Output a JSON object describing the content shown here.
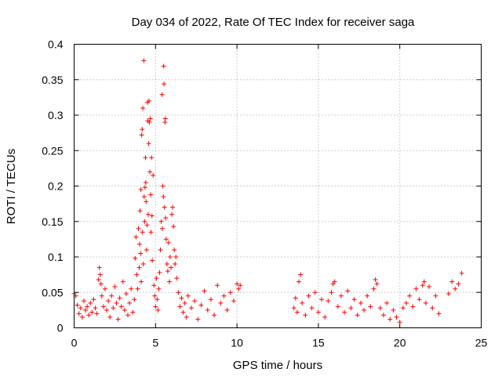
{
  "chart_data": {
    "type": "scatter",
    "title": "Day 034 of 2022, Rate Of TEC Index for receiver saga",
    "xlabel": "GPS time / hours",
    "ylabel": "ROTI / TECUs",
    "xlim": [
      0,
      25
    ],
    "ylim": [
      0,
      0.4
    ],
    "xticks": [
      0,
      5,
      10,
      15,
      20,
      25
    ],
    "yticks": [
      0,
      0.05,
      0.1,
      0.15,
      0.2,
      0.25,
      0.3,
      0.35,
      0.4
    ],
    "xtick_labels": [
      "0",
      "5",
      "10",
      "15",
      "20",
      "25"
    ],
    "ytick_labels": [
      "0",
      "0.05",
      "0.1",
      "0.15",
      "0.2",
      "0.25",
      "0.3",
      "0.35",
      "0.4"
    ],
    "grid": true,
    "marker": "+",
    "color": "#ff0000",
    "series": [
      {
        "name": "ROTI",
        "points": [
          [
            0.0,
            0.048
          ],
          [
            0.1,
            0.045
          ],
          [
            0.2,
            0.032
          ],
          [
            0.3,
            0.02
          ],
          [
            0.4,
            0.028
          ],
          [
            0.5,
            0.015
          ],
          [
            0.6,
            0.038
          ],
          [
            0.7,
            0.025
          ],
          [
            0.8,
            0.03
          ],
          [
            0.9,
            0.018
          ],
          [
            1.0,
            0.035
          ],
          [
            1.1,
            0.022
          ],
          [
            1.2,
            0.04
          ],
          [
            1.3,
            0.028
          ],
          [
            1.4,
            0.02
          ],
          [
            1.5,
            0.068
          ],
          [
            1.55,
            0.085
          ],
          [
            1.6,
            0.075
          ],
          [
            1.65,
            0.062
          ],
          [
            1.7,
            0.045
          ],
          [
            1.8,
            0.03
          ],
          [
            1.9,
            0.055
          ],
          [
            2.0,
            0.025
          ],
          [
            2.1,
            0.038
          ],
          [
            2.2,
            0.015
          ],
          [
            2.3,
            0.045
          ],
          [
            2.4,
            0.028
          ],
          [
            2.5,
            0.058
          ],
          [
            2.6,
            0.035
          ],
          [
            2.7,
            0.012
          ],
          [
            2.8,
            0.042
          ],
          [
            2.9,
            0.03
          ],
          [
            3.0,
            0.065
          ],
          [
            3.1,
            0.025
          ],
          [
            3.2,
            0.048
          ],
          [
            3.3,
            0.018
          ],
          [
            3.4,
            0.035
          ],
          [
            3.5,
            0.055
          ],
          [
            3.6,
            0.022
          ],
          [
            3.7,
            0.04
          ],
          [
            3.75,
            0.098
          ],
          [
            3.8,
            0.128
          ],
          [
            3.85,
            0.075
          ],
          [
            3.9,
            0.055
          ],
          [
            3.95,
            0.14
          ],
          [
            4.0,
            0.085
          ],
          [
            4.02,
            0.118
          ],
          [
            4.05,
            0.165
          ],
          [
            4.08,
            0.105
          ],
          [
            4.1,
            0.195
          ],
          [
            4.12,
            0.065
          ],
          [
            4.15,
            0.272
          ],
          [
            4.18,
            0.28
          ],
          [
            4.2,
            0.135
          ],
          [
            4.22,
            0.31
          ],
          [
            4.25,
            0.09
          ],
          [
            4.28,
            0.377
          ],
          [
            4.3,
            0.185
          ],
          [
            4.33,
            0.15
          ],
          [
            4.35,
            0.198
          ],
          [
            4.38,
            0.24
          ],
          [
            4.4,
            0.205
          ],
          [
            4.42,
            0.178
          ],
          [
            4.45,
            0.11
          ],
          [
            4.48,
            0.145
          ],
          [
            4.5,
            0.318
          ],
          [
            4.52,
            0.292
          ],
          [
            4.55,
            0.16
          ],
          [
            4.58,
            0.26
          ],
          [
            4.6,
            0.32
          ],
          [
            4.62,
            0.29
          ],
          [
            4.65,
            0.22
          ],
          [
            4.68,
            0.295
          ],
          [
            4.7,
            0.188
          ],
          [
            4.72,
            0.135
          ],
          [
            4.75,
            0.24
          ],
          [
            4.78,
            0.158
          ],
          [
            4.8,
            0.095
          ],
          [
            4.85,
            0.215
          ],
          [
            4.9,
            0.06
          ],
          [
            4.95,
            0.045
          ],
          [
            5.0,
            0.03
          ],
          [
            5.05,
            0.07
          ],
          [
            5.1,
            0.04
          ],
          [
            5.15,
            0.025
          ],
          [
            5.2,
            0.055
          ],
          [
            5.25,
            0.078
          ],
          [
            5.3,
            0.11
          ],
          [
            5.35,
            0.15
          ],
          [
            5.4,
            0.329
          ],
          [
            5.42,
            0.14
          ],
          [
            5.45,
            0.2
          ],
          [
            5.48,
            0.185
          ],
          [
            5.5,
            0.369
          ],
          [
            5.52,
            0.344
          ],
          [
            5.55,
            0.17
          ],
          [
            5.58,
            0.29
          ],
          [
            5.6,
            0.295
          ],
          [
            5.62,
            0.155
          ],
          [
            5.65,
            0.125
          ],
          [
            5.7,
            0.09
          ],
          [
            5.75,
            0.08
          ],
          [
            5.8,
            0.12
          ],
          [
            5.85,
            0.065
          ],
          [
            5.9,
            0.1
          ],
          [
            5.95,
            0.085
          ],
          [
            6.0,
            0.16
          ],
          [
            6.05,
            0.17
          ],
          [
            6.1,
            0.143
          ],
          [
            6.15,
            0.11
          ],
          [
            6.2,
            0.09
          ],
          [
            6.25,
            0.1
          ],
          [
            6.3,
            0.07
          ],
          [
            6.4,
            0.05
          ],
          [
            6.5,
            0.03
          ],
          [
            6.6,
            0.042
          ],
          [
            6.7,
            0.022
          ],
          [
            6.8,
            0.035
          ],
          [
            6.9,
            0.015
          ],
          [
            7.0,
            0.045
          ],
          [
            7.2,
            0.028
          ],
          [
            7.4,
            0.038
          ],
          [
            7.6,
            0.012
          ],
          [
            7.8,
            0.032
          ],
          [
            8.0,
            0.052
          ],
          [
            8.2,
            0.025
          ],
          [
            8.4,
            0.04
          ],
          [
            8.6,
            0.018
          ],
          [
            8.8,
            0.06
          ],
          [
            9.0,
            0.035
          ],
          [
            9.2,
            0.045
          ],
          [
            9.4,
            0.025
          ],
          [
            9.6,
            0.05
          ],
          [
            9.8,
            0.038
          ],
          [
            10.0,
            0.062
          ],
          [
            10.1,
            0.055
          ],
          [
            10.2,
            0.06
          ],
          [
            13.5,
            0.028
          ],
          [
            13.6,
            0.042
          ],
          [
            13.7,
            0.022
          ],
          [
            13.8,
            0.065
          ],
          [
            13.9,
            0.075
          ],
          [
            14.0,
            0.035
          ],
          [
            14.2,
            0.018
          ],
          [
            14.4,
            0.045
          ],
          [
            14.6,
            0.028
          ],
          [
            14.8,
            0.05
          ],
          [
            15.0,
            0.022
          ],
          [
            15.2,
            0.04
          ],
          [
            15.4,
            0.015
          ],
          [
            15.6,
            0.038
          ],
          [
            15.8,
            0.05
          ],
          [
            15.9,
            0.062
          ],
          [
            16.0,
            0.065
          ],
          [
            16.2,
            0.03
          ],
          [
            16.4,
            0.045
          ],
          [
            16.6,
            0.022
          ],
          [
            16.8,
            0.052
          ],
          [
            17.0,
            0.028
          ],
          [
            17.2,
            0.04
          ],
          [
            17.4,
            0.018
          ],
          [
            17.6,
            0.035
          ],
          [
            17.8,
            0.025
          ],
          [
            18.0,
            0.045
          ],
          [
            18.2,
            0.03
          ],
          [
            18.4,
            0.055
          ],
          [
            18.5,
            0.068
          ],
          [
            18.6,
            0.062
          ],
          [
            18.8,
            0.028
          ],
          [
            19.0,
            0.018
          ],
          [
            19.2,
            0.035
          ],
          [
            19.4,
            0.012
          ],
          [
            19.6,
            0.025
          ],
          [
            19.8,
            0.015
          ],
          [
            20.0,
            0.008
          ],
          [
            20.2,
            0.028
          ],
          [
            20.4,
            0.035
          ],
          [
            20.6,
            0.045
          ],
          [
            20.8,
            0.03
          ],
          [
            21.0,
            0.055
          ],
          [
            21.2,
            0.04
          ],
          [
            21.4,
            0.06
          ],
          [
            21.5,
            0.065
          ],
          [
            21.6,
            0.035
          ],
          [
            21.8,
            0.058
          ],
          [
            22.0,
            0.028
          ],
          [
            22.2,
            0.045
          ],
          [
            22.4,
            0.02
          ],
          [
            23.0,
            0.048
          ],
          [
            23.2,
            0.065
          ],
          [
            23.4,
            0.055
          ],
          [
            23.6,
            0.062
          ],
          [
            23.8,
            0.077
          ]
        ]
      }
    ]
  }
}
